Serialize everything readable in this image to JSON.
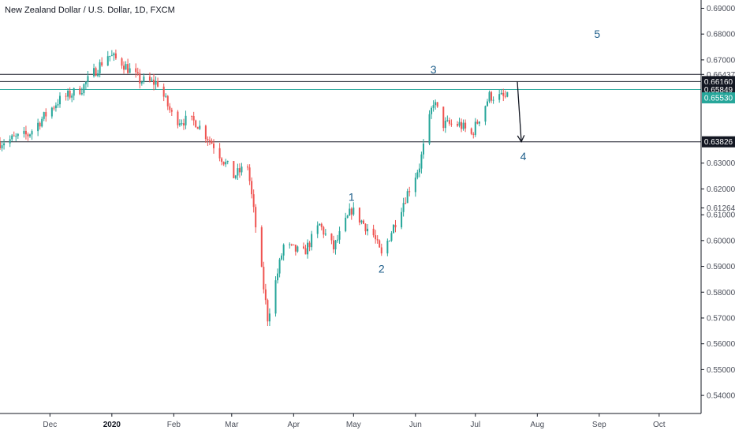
{
  "chart_data": {
    "type": "candlestick",
    "title": "New Zealand Dollar / U.S. Dollar, 1D, FXCM",
    "ylim": [
      0.533,
      0.6932
    ],
    "y_ticks": [
      "0.69000",
      "0.68000",
      "0.67000",
      "0.66437",
      "0.63000",
      "0.62000",
      "0.61264",
      "0.61000",
      "0.60000",
      "0.59000",
      "0.58000",
      "0.57000",
      "0.56000",
      "0.55000",
      "0.54000"
    ],
    "y_tick_values": [
      0.69,
      0.68,
      0.67,
      0.66437,
      0.63,
      0.62,
      0.61264,
      0.61,
      0.6,
      0.59,
      0.58,
      0.57,
      0.56,
      0.55,
      0.54
    ],
    "x_ticks": [
      {
        "label": "Dec",
        "date": "2019-12-01",
        "bold": false
      },
      {
        "label": "2020",
        "date": "2020-01-01",
        "bold": true
      },
      {
        "label": "Feb",
        "date": "2020-02-01",
        "bold": false
      },
      {
        "label": "Mar",
        "date": "2020-03-01",
        "bold": false
      },
      {
        "label": "Apr",
        "date": "2020-04-01",
        "bold": false
      },
      {
        "label": "May",
        "date": "2020-05-01",
        "bold": false
      },
      {
        "label": "Jun",
        "date": "2020-06-01",
        "bold": false
      },
      {
        "label": "Jul",
        "date": "2020-07-01",
        "bold": false
      },
      {
        "label": "Aug",
        "date": "2020-08-01",
        "bold": false
      },
      {
        "label": "Sep",
        "date": "2020-09-01",
        "bold": false
      },
      {
        "label": "Oct",
        "date": "2020-10-01",
        "bold": false
      }
    ],
    "x_range": [
      "2019-11-06",
      "2020-10-22"
    ],
    "horizontal_lines": [
      {
        "price": 0.66437,
        "color": "#131722"
      },
      {
        "price": 0.6616,
        "color": "#131722"
      },
      {
        "price": 0.65849,
        "color": "#26a69a"
      },
      {
        "price": 0.63826,
        "color": "#131722"
      }
    ],
    "price_badges": [
      {
        "label": "0.66160",
        "price": 0.6616,
        "bg": "#131722",
        "fg": "#ffffff"
      },
      {
        "label": "0.65849",
        "price": 0.65849,
        "bg": "#131722",
        "fg": "#ffffff"
      },
      {
        "label": "0.65530",
        "price": 0.6553,
        "bg": "#26a69a",
        "fg": "#ffffff"
      },
      {
        "label": "0.63826",
        "price": 0.63826,
        "bg": "#131722",
        "fg": "#ffffff"
      }
    ],
    "wave_labels": [
      {
        "text": "1",
        "date": "2020-04-30",
        "price": 0.6135,
        "align": "above"
      },
      {
        "text": "2",
        "date": "2020-05-15",
        "price": 0.5925,
        "align": "below"
      },
      {
        "text": "3",
        "date": "2020-06-10",
        "price": 0.663,
        "align": "above"
      },
      {
        "text": "4",
        "date": "2020-07-25",
        "price": 0.636,
        "align": "below"
      },
      {
        "text": "5",
        "date": "2020-08-31",
        "price": 0.6801,
        "align": "center"
      }
    ],
    "arrow": {
      "from_date": "2020-07-22",
      "from_price": 0.6616,
      "to_date": "2020-07-24",
      "to_price": 0.6383
    },
    "colors": {
      "up": "#26a69a",
      "down": "#ef5350",
      "axis": "#131722"
    },
    "anchors": [
      {
        "date": "2019-11-06",
        "close": 0.638
      },
      {
        "date": "2019-11-20",
        "close": 0.641
      },
      {
        "date": "2019-12-05",
        "close": 0.654
      },
      {
        "date": "2019-12-17",
        "close": 0.659
      },
      {
        "date": "2019-12-30",
        "close": 0.672
      },
      {
        "date": "2020-01-06",
        "close": 0.669
      },
      {
        "date": "2020-01-15",
        "close": 0.662
      },
      {
        "date": "2020-01-24",
        "close": 0.661
      },
      {
        "date": "2020-02-01",
        "close": 0.647
      },
      {
        "date": "2020-02-12",
        "close": 0.646
      },
      {
        "date": "2020-02-21",
        "close": 0.637
      },
      {
        "date": "2020-03-02",
        "close": 0.625
      },
      {
        "date": "2020-03-09",
        "close": 0.629
      },
      {
        "date": "2020-03-19",
        "close": 0.57
      },
      {
        "date": "2020-03-27",
        "close": 0.598
      },
      {
        "date": "2020-04-06",
        "close": 0.595
      },
      {
        "date": "2020-04-14",
        "close": 0.606
      },
      {
        "date": "2020-04-21",
        "close": 0.597
      },
      {
        "date": "2020-04-30",
        "close": 0.612
      },
      {
        "date": "2020-05-11",
        "close": 0.602
      },
      {
        "date": "2020-05-15",
        "close": 0.594
      },
      {
        "date": "2020-05-26",
        "close": 0.615
      },
      {
        "date": "2020-06-03",
        "close": 0.629
      },
      {
        "date": "2020-06-10",
        "close": 0.654
      },
      {
        "date": "2020-06-15",
        "close": 0.645
      },
      {
        "date": "2020-06-23",
        "close": 0.645
      },
      {
        "date": "2020-06-29",
        "close": 0.641
      },
      {
        "date": "2020-07-08",
        "close": 0.656
      },
      {
        "date": "2020-07-17",
        "close": 0.6553
      }
    ]
  }
}
